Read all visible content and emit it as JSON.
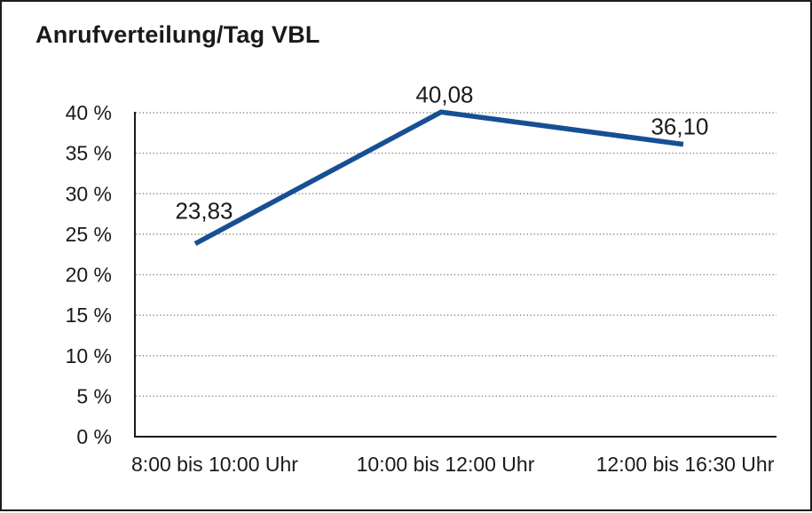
{
  "frame": {
    "background": "#ffffff",
    "border_color": "#1d1d1b"
  },
  "chart_data": {
    "type": "line",
    "title": "Anrufverteilung/Tag VBL",
    "categories": [
      "8:00 bis 10:00 Uhr",
      "10:00 bis 12:00 Uhr",
      "12:00 bis 16:30 Uhr"
    ],
    "series": [
      {
        "name": "Anrufverteilung/Tag VBL",
        "values": [
          23.83,
          40.08,
          36.1
        ]
      }
    ],
    "data_labels": [
      "23,83",
      "40,08",
      "36,10"
    ],
    "y_ticks": [
      {
        "value": 0,
        "label": "0 %"
      },
      {
        "value": 5,
        "label": "5 %"
      },
      {
        "value": 10,
        "label": "10 %"
      },
      {
        "value": 15,
        "label": "15 %"
      },
      {
        "value": 20,
        "label": "20 %"
      },
      {
        "value": 25,
        "label": "25 %"
      },
      {
        "value": 30,
        "label": "30 %"
      },
      {
        "value": 35,
        "label": "35 %"
      },
      {
        "value": 40,
        "label": "40 %"
      }
    ],
    "ylim": [
      0,
      40
    ],
    "xlabel": "",
    "ylabel": "",
    "grid": "horizontal-dotted",
    "legend": "none",
    "line_color": "#174f94",
    "text_color": "#1a1a1a",
    "grid_color": "#8c8c8c"
  }
}
